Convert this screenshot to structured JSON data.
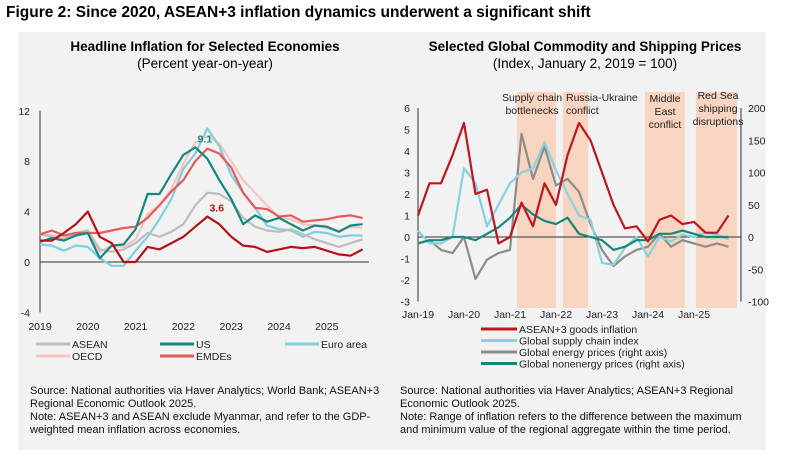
{
  "figure_title": "Figure 2: Since 2020, ASEAN+3 inflation dynamics underwent a significant shift",
  "chart_data": [
    {
      "type": "line",
      "title": "Headline Inflation for Selected Economies",
      "subtitle": "(Percent year-on-year)",
      "xlim": [
        2019,
        2026
      ],
      "ylim": [
        -4,
        12
      ],
      "x_ticks": [
        "2019",
        "2020",
        "2021",
        "2022",
        "2023",
        "2024",
        "2025"
      ],
      "y_ticks": [
        "-4",
        "0",
        "4",
        "8",
        "12"
      ],
      "grid": false,
      "legend_placement": "bottom",
      "x": [
        2019,
        2019.25,
        2019.5,
        2019.75,
        2020,
        2020.25,
        2020.5,
        2020.75,
        2021,
        2021.25,
        2021.5,
        2021.75,
        2022,
        2022.25,
        2022.5,
        2022.75,
        2023,
        2023.25,
        2023.5,
        2023.75,
        2024,
        2024.25,
        2024.5,
        2024.75,
        2025,
        2025.25,
        2025.5,
        2025.75
      ],
      "series": [
        {
          "name": "OECD",
          "color": "#f7c4c0",
          "values": [
            2.2,
            2.1,
            2.0,
            2.1,
            2.3,
            0.8,
            1.3,
            1.2,
            1.8,
            3.8,
            4.5,
            5.8,
            7.8,
            9.5,
            10.0,
            9.4,
            8.0,
            6.5,
            5.5,
            4.5,
            3.5,
            3.4,
            3.0,
            2.9,
            2.7,
            2.5,
            2.8,
            2.7
          ]
        },
        {
          "name": "Euro area",
          "color": "#7fd0dc",
          "values": [
            1.4,
            1.3,
            0.9,
            1.3,
            1.2,
            0.3,
            -0.3,
            -0.3,
            0.9,
            2.0,
            3.4,
            5.0,
            7.4,
            8.6,
            10.6,
            9.2,
            6.9,
            5.5,
            4.3,
            2.9,
            2.6,
            2.5,
            2.0,
            2.4,
            2.3,
            2.0,
            2.1,
            2.1
          ]
        },
        {
          "name": "ASEAN",
          "color": "#bdbdbd",
          "values": [
            2.2,
            2.0,
            1.8,
            2.3,
            2.5,
            1.0,
            0.8,
            1.0,
            1.5,
            2.3,
            2.0,
            2.4,
            3.0,
            4.5,
            5.5,
            5.4,
            4.8,
            3.5,
            2.8,
            2.5,
            2.4,
            2.6,
            2.2,
            1.8,
            1.5,
            1.2,
            1.5,
            1.8
          ]
        },
        {
          "name": "EMDEs",
          "color": "#e8595a",
          "values": [
            2.2,
            2.5,
            2.1,
            2.3,
            2.3,
            2.3,
            2.5,
            2.7,
            2.8,
            3.5,
            4.5,
            5.6,
            6.5,
            8.0,
            9.0,
            8.6,
            7.5,
            5.5,
            4.3,
            4.2,
            3.6,
            3.7,
            3.2,
            3.3,
            3.4,
            3.6,
            3.7,
            3.5
          ]
        },
        {
          "name": "US",
          "color": "#13897e",
          "values": [
            1.6,
            1.9,
            1.7,
            2.1,
            2.3,
            0.3,
            1.3,
            1.4,
            2.6,
            5.4,
            5.4,
            7.0,
            8.5,
            9.1,
            8.2,
            6.5,
            5.0,
            3.0,
            3.7,
            3.2,
            3.5,
            3.0,
            2.5,
            2.9,
            2.8,
            2.4,
            2.9,
            3.0
          ]
        },
        {
          "color": "#b4121b",
          "values": [
            1.7,
            1.7,
            2.3,
            3.0,
            4.0,
            2.0,
            1.5,
            0.0,
            0.0,
            1.2,
            1.0,
            1.5,
            2.0,
            2.8,
            3.6,
            3.0,
            2.0,
            1.3,
            1.2,
            0.8,
            1.0,
            1.2,
            1.1,
            1.2,
            0.9,
            0.6,
            0.5,
            1.0
          ]
        }
      ],
      "annotations": [
        {
          "text": "9.1",
          "x": 2022.45,
          "y": 9.1,
          "color": "#13897e"
        },
        {
          "text": "3.6",
          "x": 2022.7,
          "y": 3.6,
          "color": "#b4121b"
        }
      ],
      "legend_order": [
        "ASEAN",
        "US",
        "Euro area",
        "OECD",
        "EMDEs"
      ],
      "source": "Source: National authorities via Haver Analytics; World Bank; ASEAN+3 Regional Economic Outlook 2025.",
      "note": "Note: ASEAN+3 and ASEAN exclude Myanmar, and refer to the GDP-weighted mean inflation across economies."
    },
    {
      "type": "line",
      "title": "Selected Global Commodity and Shipping Prices",
      "subtitle": "(Index, January 2, 2019 = 100)",
      "xlim": [
        2019,
        2025.95
      ],
      "ylim": [
        -3,
        6
      ],
      "y2lim": [
        -100,
        200
      ],
      "x_ticks": [
        "Jan-19",
        "Jan-20",
        "Jan-21",
        "Jan-22",
        "Jan-23",
        "Jan-24",
        "Jan-25"
      ],
      "y_ticks": [
        "-3",
        "-2",
        "-1",
        "0",
        "1",
        "2",
        "3",
        "4",
        "5",
        "6"
      ],
      "y2_ticks": [
        "-100",
        "-50",
        "0",
        "50",
        "100",
        "150",
        "200"
      ],
      "grid": false,
      "legend_placement": "bottom",
      "shaded_periods": [
        {
          "label": "Supply chain bottlenecks",
          "start": 2021.15,
          "end": 2022.0
        },
        {
          "label": "Russia-Ukraine conflict",
          "start": 2022.15,
          "end": 2022.7
        },
        {
          "label": "Middle East conflict",
          "start": 2023.93,
          "end": 2024.8
        },
        {
          "label": "Red Sea shipping disruptions",
          "start": 2025.04,
          "end": 2025.93
        }
      ],
      "shade_color": "#f8d5c0",
      "x": [
        2019,
        2019.25,
        2019.5,
        2019.75,
        2020,
        2020.25,
        2020.5,
        2020.75,
        2021,
        2021.25,
        2021.5,
        2021.75,
        2022,
        2022.25,
        2022.5,
        2022.75,
        2023,
        2023.25,
        2023.5,
        2023.75,
        2024,
        2024.25,
        2024.5,
        2024.75,
        2025,
        2025.25,
        2025.5,
        2025.75
      ],
      "series": [
        {
          "name": "Global energy prices (right axis)",
          "axis": "right",
          "color": "#8c8c8c",
          "values": [
            -10,
            -5,
            -20,
            -25,
            0,
            -65,
            -35,
            -25,
            -20,
            160,
            90,
            140,
            80,
            90,
            70,
            20,
            -20,
            -45,
            -30,
            -20,
            -15,
            5,
            -15,
            -5,
            -10,
            -15,
            -10,
            -15
          ]
        },
        {
          "name": "Global supply chain index",
          "axis": "left",
          "color": "#86d3de",
          "values": [
            0.3,
            -0.3,
            -0.3,
            0.0,
            3.2,
            2.5,
            0.5,
            1.5,
            2.5,
            3.0,
            3.2,
            4.4,
            3.1,
            2.0,
            1.0,
            0.8,
            -1.2,
            -1.3,
            -0.5,
            0.0,
            -0.9,
            0.0,
            -0.2,
            0.1,
            0.0,
            0.2,
            0.1,
            -0.1
          ]
        },
        {
          "name": "Global nonenergy prices (right axis)",
          "axis": "right",
          "color": "#13897e",
          "values": [
            -10,
            -5,
            -5,
            0,
            0,
            -5,
            5,
            15,
            30,
            50,
            35,
            25,
            20,
            30,
            5,
            0,
            -5,
            -20,
            -15,
            -5,
            -5,
            5,
            5,
            10,
            5,
            0,
            0,
            0
          ]
        },
        {
          "name": "ASEAN+3 goods inflation",
          "axis": "left",
          "color": "#c0161e",
          "values": [
            1.0,
            2.5,
            2.5,
            3.8,
            5.3,
            2.0,
            2.2,
            -0.3,
            0.0,
            1.6,
            0.5,
            2.5,
            1.5,
            3.8,
            5.3,
            4.5,
            3.0,
            1.5,
            0.4,
            0.5,
            -0.2,
            0.8,
            1.0,
            0.6,
            0.7,
            0.2,
            0.2,
            1.0
          ]
        }
      ],
      "legend_order": [
        "ASEAN+3 goods inflation",
        "Global supply chain index",
        "Global energy prices (right axis)",
        "Global nonenergy prices (right axis)"
      ],
      "source": "Source: National authorities via Haver Analytics; ASEAN+3 Regional Economic Outlook 2025.",
      "note": "Note: Range of inflation refers to the difference between the maximum and minimum value of the regional aggregate within the time period."
    }
  ]
}
